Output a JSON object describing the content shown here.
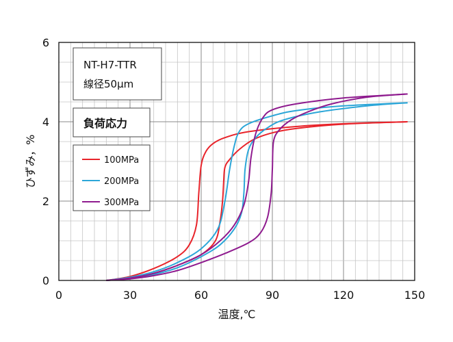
{
  "chart_data": {
    "type": "line",
    "xlabel": "温度,℃",
    "ylabel": "ひずみ，%",
    "xlim": [
      0,
      150
    ],
    "ylim": [
      0,
      6
    ],
    "x_ticks": [
      0,
      30,
      60,
      90,
      120,
      150
    ],
    "y_ticks": [
      0,
      2,
      4,
      6
    ],
    "grid": true,
    "legend_position": "left",
    "info_box": {
      "line1": "NT-H7-TTR",
      "line2": "線径50μm"
    },
    "legend_title": "負荷応力",
    "series": [
      {
        "name": "100MPa",
        "color": "#e8232a",
        "heating": [
          [
            20,
            0
          ],
          [
            30,
            0.1
          ],
          [
            40,
            0.3
          ],
          [
            50,
            0.6
          ],
          [
            55,
            0.9
          ],
          [
            58,
            1.4
          ],
          [
            59,
            2.2
          ],
          [
            60,
            2.9
          ],
          [
            62,
            3.25
          ],
          [
            65,
            3.45
          ],
          [
            70,
            3.6
          ],
          [
            80,
            3.75
          ],
          [
            100,
            3.88
          ],
          [
            120,
            3.95
          ],
          [
            147,
            4.0
          ]
        ],
        "cooling": [
          [
            20,
            0
          ],
          [
            30,
            0.05
          ],
          [
            40,
            0.18
          ],
          [
            50,
            0.38
          ],
          [
            60,
            0.65
          ],
          [
            66,
            1.0
          ],
          [
            68,
            1.5
          ],
          [
            69,
            2.0
          ],
          [
            69.5,
            2.5
          ],
          [
            70,
            2.85
          ],
          [
            72,
            3.05
          ],
          [
            76,
            3.3
          ],
          [
            82,
            3.55
          ],
          [
            90,
            3.72
          ],
          [
            100,
            3.83
          ],
          [
            120,
            3.94
          ],
          [
            147,
            4.0
          ]
        ]
      },
      {
        "name": "200MPa",
        "color": "#2ba6d8",
        "heating": [
          [
            20,
            0
          ],
          [
            30,
            0.08
          ],
          [
            40,
            0.22
          ],
          [
            50,
            0.45
          ],
          [
            60,
            0.8
          ],
          [
            67,
            1.3
          ],
          [
            70,
            2.0
          ],
          [
            72,
            2.8
          ],
          [
            74,
            3.4
          ],
          [
            76,
            3.75
          ],
          [
            80,
            3.95
          ],
          [
            90,
            4.15
          ],
          [
            100,
            4.28
          ],
          [
            120,
            4.4
          ],
          [
            147,
            4.48
          ]
        ],
        "cooling": [
          [
            20,
            0
          ],
          [
            30,
            0.05
          ],
          [
            40,
            0.15
          ],
          [
            50,
            0.32
          ],
          [
            60,
            0.6
          ],
          [
            68,
            0.9
          ],
          [
            74,
            1.3
          ],
          [
            77,
            1.7
          ],
          [
            78,
            2.2
          ],
          [
            78.5,
            2.8
          ],
          [
            80,
            3.3
          ],
          [
            83,
            3.6
          ],
          [
            88,
            3.85
          ],
          [
            95,
            4.05
          ],
          [
            110,
            4.25
          ],
          [
            130,
            4.4
          ],
          [
            147,
            4.48
          ]
        ]
      },
      {
        "name": "300MPa",
        "color": "#8e1a8e",
        "heating": [
          [
            20,
            0
          ],
          [
            30,
            0.06
          ],
          [
            40,
            0.18
          ],
          [
            50,
            0.38
          ],
          [
            60,
            0.65
          ],
          [
            68,
            1.0
          ],
          [
            74,
            1.4
          ],
          [
            78,
            1.9
          ],
          [
            80,
            2.5
          ],
          [
            81,
            3.1
          ],
          [
            83,
            3.7
          ],
          [
            86,
            4.1
          ],
          [
            90,
            4.3
          ],
          [
            100,
            4.45
          ],
          [
            120,
            4.6
          ],
          [
            147,
            4.7
          ]
        ],
        "cooling": [
          [
            20,
            0
          ],
          [
            30,
            0.04
          ],
          [
            40,
            0.12
          ],
          [
            50,
            0.25
          ],
          [
            60,
            0.45
          ],
          [
            70,
            0.68
          ],
          [
            80,
            0.95
          ],
          [
            85,
            1.2
          ],
          [
            88,
            1.6
          ],
          [
            89.5,
            2.2
          ],
          [
            90,
            2.8
          ],
          [
            90.5,
            3.5
          ],
          [
            93,
            3.8
          ],
          [
            98,
            4.05
          ],
          [
            105,
            4.25
          ],
          [
            115,
            4.45
          ],
          [
            130,
            4.62
          ],
          [
            147,
            4.7
          ]
        ]
      }
    ]
  }
}
